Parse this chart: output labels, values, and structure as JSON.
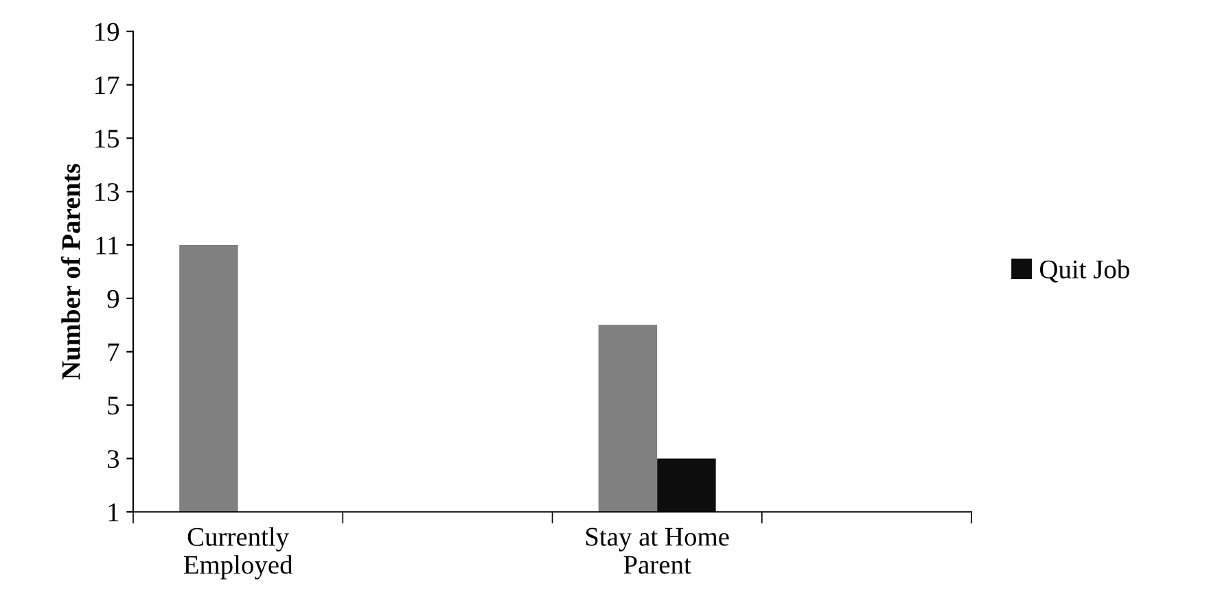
{
  "chart_data": {
    "type": "bar",
    "ylabel": "Number of Parents",
    "categories": [
      "Currently Employed",
      null,
      "Stay at Home Parent",
      null
    ],
    "series": [
      {
        "color": "#808080",
        "values": [
          11,
          null,
          8,
          null
        ]
      },
      {
        "name": "Quit Job",
        "color": "#0d0d0d",
        "values": [
          null,
          null,
          3,
          null
        ]
      }
    ],
    "ylim": [
      1,
      19
    ],
    "yticks": [
      1,
      3,
      5,
      7,
      9,
      11,
      13,
      15,
      17,
      19
    ],
    "grid": false,
    "legend": "right"
  }
}
